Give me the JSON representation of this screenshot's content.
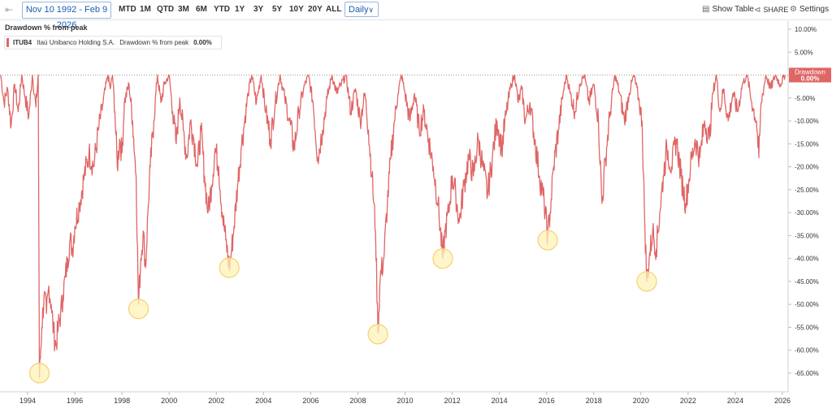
{
  "toolbar": {
    "date_range": "Nov 10 1992 - Feb 9 2026",
    "ranges": [
      "MTD",
      "1M",
      "QTD",
      "3M",
      "6M",
      "YTD",
      "1Y",
      "3Y",
      "5Y",
      "10Y",
      "20Y",
      "ALL"
    ],
    "interval": "Daily",
    "show_table": "Show Table",
    "share": "SHARE",
    "settings": "Settings"
  },
  "chart": {
    "title": "Drawdown % from peak",
    "legend": {
      "ticker": "ITUB4",
      "company": "Itaú Unibanco Holding S.A.",
      "metric": "Drawdown % from peak",
      "value": "0.00%"
    },
    "current_label_line1": "Drawdown",
    "current_label_line2": "0.00%"
  },
  "colors": {
    "series": "#e06565",
    "highlight_fill": "#fdf1b8",
    "highlight_stroke": "#f2d36e",
    "current_label_bg": "#e06565"
  },
  "chart_data": {
    "type": "area",
    "series": [
      {
        "name": "Drawdown % from peak",
        "color": "#e06565"
      }
    ],
    "ylim": [
      -70,
      10
    ],
    "yticks": [
      10,
      5,
      0,
      -5,
      -10,
      -15,
      -20,
      -25,
      -30,
      -35,
      -40,
      -45,
      -50,
      -55,
      -60,
      -65
    ],
    "ytick_labels": [
      "10.00%",
      "5.00%",
      "",
      "-5.00%",
      "-10.00%",
      "-15.00%",
      "-20.00%",
      "-25.00%",
      "-30.00%",
      "-35.00%",
      "-40.00%",
      "-45.00%",
      "-50.00%",
      "-55.00%",
      "-60.00%",
      "-65.00%"
    ],
    "xlim": [
      1992.86,
      2026.11
    ],
    "xticks": [
      1994,
      1996,
      1998,
      2000,
      2002,
      2004,
      2006,
      2008,
      2010,
      2012,
      2014,
      2016,
      2018,
      2020,
      2022,
      2024,
      2026
    ],
    "xtick_labels": [
      "1994",
      "1996",
      "1998",
      "2000",
      "2002",
      "2004",
      "2006",
      "2008",
      "2010",
      "2012",
      "2014",
      "2016",
      "2018",
      "2020",
      "2022",
      "2024",
      "2026"
    ],
    "points": [
      [
        1992.86,
        0
      ],
      [
        1993.0,
        -6
      ],
      [
        1993.15,
        -3
      ],
      [
        1993.3,
        -11
      ],
      [
        1993.45,
        -2
      ],
      [
        1993.6,
        -8
      ],
      [
        1993.75,
        0
      ],
      [
        1993.9,
        -5
      ],
      [
        1994.05,
        -9
      ],
      [
        1994.2,
        0
      ],
      [
        1994.35,
        -7
      ],
      [
        1994.45,
        0
      ],
      [
        1994.5,
        -66
      ],
      [
        1994.6,
        -55
      ],
      [
        1994.7,
        -48
      ],
      [
        1994.8,
        -52
      ],
      [
        1994.9,
        -46
      ],
      [
        1995.0,
        -50
      ],
      [
        1995.1,
        -56
      ],
      [
        1995.2,
        -59
      ],
      [
        1995.3,
        -55
      ],
      [
        1995.4,
        -52
      ],
      [
        1995.5,
        -48
      ],
      [
        1995.6,
        -44
      ],
      [
        1995.7,
        -40
      ],
      [
        1995.8,
        -36
      ],
      [
        1995.9,
        -38
      ],
      [
        1996.0,
        -33
      ],
      [
        1996.2,
        -28
      ],
      [
        1996.4,
        -22
      ],
      [
        1996.6,
        -17
      ],
      [
        1996.8,
        -20
      ],
      [
        1997.0,
        -12
      ],
      [
        1997.2,
        -6
      ],
      [
        1997.4,
        0
      ],
      [
        1997.5,
        -3
      ],
      [
        1997.6,
        0
      ],
      [
        1997.7,
        -8
      ],
      [
        1997.8,
        -20
      ],
      [
        1997.9,
        -14
      ],
      [
        1998.0,
        -17
      ],
      [
        1998.1,
        -6
      ],
      [
        1998.3,
        -2
      ],
      [
        1998.45,
        -10
      ],
      [
        1998.6,
        -22
      ],
      [
        1998.7,
        -50
      ],
      [
        1998.8,
        -40
      ],
      [
        1998.9,
        -34
      ],
      [
        1999.0,
        -42
      ],
      [
        1999.1,
        -30
      ],
      [
        1999.2,
        -20
      ],
      [
        1999.35,
        -10
      ],
      [
        1999.5,
        0
      ],
      [
        1999.65,
        -6
      ],
      [
        1999.8,
        -2
      ],
      [
        2000.0,
        0
      ],
      [
        2000.15,
        -8
      ],
      [
        2000.3,
        -15
      ],
      [
        2000.45,
        -5
      ],
      [
        2000.6,
        -12
      ],
      [
        2000.75,
        -18
      ],
      [
        2000.9,
        -10
      ],
      [
        2001.05,
        -14
      ],
      [
        2001.2,
        -20
      ],
      [
        2001.35,
        -12
      ],
      [
        2001.5,
        -22
      ],
      [
        2001.65,
        -30
      ],
      [
        2001.8,
        -24
      ],
      [
        2001.95,
        -16
      ],
      [
        2002.1,
        -20
      ],
      [
        2002.25,
        -30
      ],
      [
        2002.4,
        -36
      ],
      [
        2002.55,
        -42
      ],
      [
        2002.65,
        -38
      ],
      [
        2002.75,
        -33
      ],
      [
        2002.9,
        -24
      ],
      [
        2003.05,
        -16
      ],
      [
        2003.2,
        -10
      ],
      [
        2003.35,
        -4
      ],
      [
        2003.5,
        0
      ],
      [
        2003.7,
        -6
      ],
      [
        2003.9,
        0
      ],
      [
        2004.1,
        -8
      ],
      [
        2004.3,
        -14
      ],
      [
        2004.5,
        -6
      ],
      [
        2004.7,
        0
      ],
      [
        2004.9,
        -5
      ],
      [
        2005.1,
        -10
      ],
      [
        2005.3,
        -16
      ],
      [
        2005.5,
        -8
      ],
      [
        2005.7,
        -3
      ],
      [
        2005.9,
        0
      ],
      [
        2006.1,
        -6
      ],
      [
        2006.3,
        -18
      ],
      [
        2006.5,
        -12
      ],
      [
        2006.7,
        -5
      ],
      [
        2006.9,
        0
      ],
      [
        2007.1,
        -4
      ],
      [
        2007.3,
        -2
      ],
      [
        2007.5,
        0
      ],
      [
        2007.7,
        -8
      ],
      [
        2007.9,
        -3
      ],
      [
        2008.1,
        -10
      ],
      [
        2008.3,
        -4
      ],
      [
        2008.45,
        -12
      ],
      [
        2008.6,
        -22
      ],
      [
        2008.75,
        -34
      ],
      [
        2008.85,
        -56
      ],
      [
        2008.95,
        -44
      ],
      [
        2009.1,
        -40
      ],
      [
        2009.25,
        -28
      ],
      [
        2009.4,
        -18
      ],
      [
        2009.55,
        -10
      ],
      [
        2009.7,
        -4
      ],
      [
        2009.85,
        0
      ],
      [
        2010.0,
        -4
      ],
      [
        2010.2,
        -10
      ],
      [
        2010.4,
        -4
      ],
      [
        2010.6,
        -12
      ],
      [
        2010.8,
        -8
      ],
      [
        2011.0,
        -14
      ],
      [
        2011.2,
        -20
      ],
      [
        2011.4,
        -28
      ],
      [
        2011.6,
        -40
      ],
      [
        2011.7,
        -34
      ],
      [
        2011.85,
        -30
      ],
      [
        2012.0,
        -22
      ],
      [
        2012.15,
        -26
      ],
      [
        2012.3,
        -32
      ],
      [
        2012.5,
        -24
      ],
      [
        2012.7,
        -18
      ],
      [
        2012.9,
        -22
      ],
      [
        2013.1,
        -14
      ],
      [
        2013.3,
        -20
      ],
      [
        2013.5,
        -26
      ],
      [
        2013.7,
        -18
      ],
      [
        2013.9,
        -10
      ],
      [
        2014.1,
        -16
      ],
      [
        2014.3,
        -8
      ],
      [
        2014.5,
        -2
      ],
      [
        2014.65,
        0
      ],
      [
        2014.8,
        -6
      ],
      [
        2014.95,
        -3
      ],
      [
        2015.1,
        -10
      ],
      [
        2015.3,
        -6
      ],
      [
        2015.5,
        -14
      ],
      [
        2015.7,
        -22
      ],
      [
        2015.9,
        -28
      ],
      [
        2016.05,
        -35
      ],
      [
        2016.15,
        -30
      ],
      [
        2016.3,
        -20
      ],
      [
        2016.5,
        -12
      ],
      [
        2016.7,
        -4
      ],
      [
        2016.85,
        0
      ],
      [
        2017.0,
        -4
      ],
      [
        2017.2,
        -8
      ],
      [
        2017.4,
        -2
      ],
      [
        2017.6,
        0
      ],
      [
        2017.8,
        -6
      ],
      [
        2018.0,
        -2
      ],
      [
        2018.2,
        -10
      ],
      [
        2018.35,
        -28
      ],
      [
        2018.5,
        -18
      ],
      [
        2018.7,
        -8
      ],
      [
        2018.9,
        0
      ],
      [
        2019.1,
        -4
      ],
      [
        2019.3,
        -10
      ],
      [
        2019.5,
        -4
      ],
      [
        2019.7,
        0
      ],
      [
        2019.9,
        -5
      ],
      [
        2020.05,
        -10
      ],
      [
        2020.15,
        -30
      ],
      [
        2020.25,
        -45
      ],
      [
        2020.35,
        -40
      ],
      [
        2020.5,
        -34
      ],
      [
        2020.65,
        -38
      ],
      [
        2020.8,
        -30
      ],
      [
        2020.95,
        -22
      ],
      [
        2021.1,
        -16
      ],
      [
        2021.3,
        -20
      ],
      [
        2021.5,
        -14
      ],
      [
        2021.7,
        -22
      ],
      [
        2021.9,
        -28
      ],
      [
        2022.1,
        -20
      ],
      [
        2022.3,
        -14
      ],
      [
        2022.5,
        -18
      ],
      [
        2022.7,
        -10
      ],
      [
        2022.9,
        -14
      ],
      [
        2023.05,
        -4
      ],
      [
        2023.2,
        0
      ],
      [
        2023.35,
        -8
      ],
      [
        2023.5,
        -3
      ],
      [
        2023.7,
        -10
      ],
      [
        2023.9,
        -4
      ],
      [
        2024.1,
        -8
      ],
      [
        2024.3,
        -2
      ],
      [
        2024.5,
        0
      ],
      [
        2024.7,
        -6
      ],
      [
        2024.9,
        -10
      ],
      [
        2025.0,
        -18
      ],
      [
        2025.1,
        -6
      ],
      [
        2025.3,
        0
      ],
      [
        2025.5,
        -3
      ],
      [
        2025.7,
        0
      ],
      [
        2025.9,
        -2
      ],
      [
        2026.11,
        0
      ]
    ],
    "highlighted_troughs": [
      {
        "x": 1994.5,
        "y": -65
      },
      {
        "x": 1998.7,
        "y": -51
      },
      {
        "x": 2002.55,
        "y": -42
      },
      {
        "x": 2008.85,
        "y": -56.5
      },
      {
        "x": 2011.6,
        "y": -40
      },
      {
        "x": 2016.05,
        "y": -36
      },
      {
        "x": 2020.25,
        "y": -45
      }
    ],
    "legend_position": "top-left",
    "grid": false
  }
}
